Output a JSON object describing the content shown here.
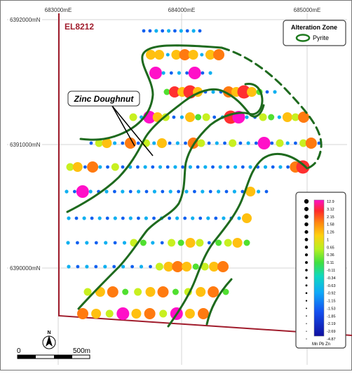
{
  "map": {
    "easting_labels": [
      "683000mE",
      "684000mE",
      "685000mE"
    ],
    "northing_labels": [
      "6392000mN",
      "6391000mN",
      "6390000mN"
    ],
    "tenement_label": "EL8212",
    "callout_label": "Zinc Doughnut",
    "scale_bar": {
      "start_label": "0",
      "end_label": "500m"
    },
    "north_arrow_label": "N"
  },
  "legend_alteration": {
    "title": "Alteration Zone",
    "item_label": "Pyrite",
    "item_color": "#1e7a1e"
  },
  "legend_values": {
    "labels": [
      "12.9",
      "3.12",
      "2.15",
      "1.58",
      "1.26",
      "1",
      "0.65",
      "0.36",
      "0.11",
      "-0.11",
      "-0.34",
      "-0.63",
      "-0.92",
      "-1.15",
      "-1.53",
      "-1.85",
      "-2.19",
      "-2.69",
      "-4.87"
    ],
    "caption": "Mn Pb Zn",
    "colors": [
      "#ff10c8",
      "#ff3030",
      "#ff7a10",
      "#ffc010",
      "#c8f020",
      "#50e030",
      "#10d8b0",
      "#10b0f0",
      "#1060f0",
      "#2020c0"
    ]
  },
  "colors": {
    "tenement_line": "#a01c2c",
    "pyrite_line": "#1e6a1e"
  }
}
